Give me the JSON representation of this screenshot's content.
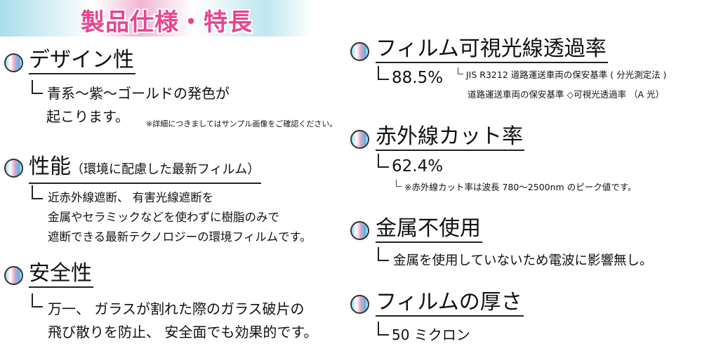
{
  "header": {
    "title": "製品仕様・特長"
  },
  "left": {
    "design": {
      "heading": "デザイン性",
      "lines": [
        "青系～紫～ゴールドの発色が",
        "起こります。"
      ],
      "note": "※詳細につきましてはサンプル画像をご確認ください。"
    },
    "performance": {
      "heading": "性能",
      "heading_sub": "（環境に配慮した最新フィルム）",
      "lines": [
        "近赤外線遮断、 有害光線遮断を",
        "金属やセラミックなどを使わずに樹脂のみで",
        "遮断できる最新テクノロジーの環境フィルムです。"
      ]
    },
    "safety": {
      "heading": "安全性",
      "lines": [
        "万一、 ガラスが割れた際のガラス破片の",
        "飛び散りを防止、 安全面でも効果的です。"
      ]
    }
  },
  "right": {
    "visible": {
      "heading": "フィルム可視光線透過率",
      "value": "88.5%",
      "notes": [
        "JIS R3212 道路運送車両の保安基準 ( 分光測定法 )",
        "道路運送車両の保安基準 ◇可視光透過率 （A 光）"
      ]
    },
    "infrared": {
      "heading": "赤外線カット率",
      "value": "62.4%",
      "note": "※赤外線カット率は波長 780～2500nm のピーク値です。"
    },
    "metal": {
      "heading": "金属不使用",
      "line": "金属を使用していないため電波に影響無し。"
    },
    "thickness": {
      "heading": "フィルムの厚さ",
      "value": "50 ミクロン"
    }
  },
  "colors": {
    "title": "#e8458f",
    "band_blue": "#a9dcea",
    "band_pink": "#f2b7d2"
  }
}
